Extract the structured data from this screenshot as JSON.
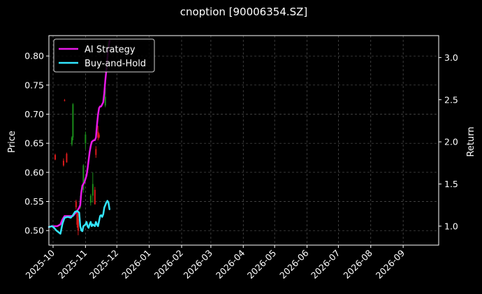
{
  "chart_data": {
    "type": "line",
    "title": "cnoption [90006354.SZ]",
    "ylabel_left": "Price",
    "ylabel_right": "Return",
    "xlim": [
      "2025-09-27",
      "2026-10-05"
    ],
    "ylim_left": [
      0.475,
      0.835
    ],
    "ylim_right": [
      0.775,
      3.26
    ],
    "grid": true,
    "legend_position": "top-left",
    "x_ticks": [
      "2025-10",
      "2025-11",
      "2025-12",
      "2026-01",
      "2026-02",
      "2026-03",
      "2026-04",
      "2026-05",
      "2026-06",
      "2026-07",
      "2026-08",
      "2026-09"
    ],
    "x_tick_dates": [
      "2025-10-01",
      "2025-11-01",
      "2025-12-01",
      "2026-01-01",
      "2026-02-01",
      "2026-03-01",
      "2026-04-01",
      "2026-05-01",
      "2026-06-01",
      "2026-07-01",
      "2026-08-01",
      "2026-09-01"
    ],
    "y_ticks_left": [
      "0.50",
      "0.55",
      "0.60",
      "0.65",
      "0.70",
      "0.75",
      "0.80"
    ],
    "y_ticks_left_values": [
      0.5,
      0.55,
      0.6,
      0.65,
      0.7,
      0.75,
      0.8
    ],
    "y_ticks_right": [
      "1.0",
      "1.5",
      "2.0",
      "2.5",
      "3.0"
    ],
    "y_ticks_right_values": [
      1.0,
      1.5,
      2.0,
      2.5,
      3.0
    ],
    "series": [
      {
        "name": "AI Strategy",
        "axis": "right",
        "color": "#e619e6",
        "x": [
          "2025-09-27",
          "2025-09-30",
          "2025-10-05",
          "2025-10-08",
          "2025-10-10",
          "2025-10-12",
          "2025-10-15",
          "2025-10-20",
          "2025-10-22",
          "2025-10-24",
          "2025-10-26",
          "2025-10-27",
          "2025-10-28",
          "2025-10-29",
          "2025-10-30",
          "2025-10-31",
          "2025-11-02",
          "2025-11-03",
          "2025-11-04",
          "2025-11-05",
          "2025-11-06",
          "2025-11-07",
          "2025-11-09",
          "2025-11-10",
          "2025-11-11",
          "2025-11-12",
          "2025-11-13",
          "2025-11-14",
          "2025-11-15",
          "2025-11-16",
          "2025-11-18",
          "2025-11-19",
          "2025-11-20",
          "2025-11-21",
          "2025-11-22",
          "2025-11-23",
          "2025-11-24"
        ],
        "values": [
          0.99,
          1.0,
          1.0,
          1.02,
          1.08,
          1.12,
          1.12,
          1.12,
          1.15,
          1.18,
          1.22,
          1.25,
          1.4,
          1.48,
          1.5,
          1.52,
          1.6,
          1.68,
          1.78,
          1.88,
          1.95,
          2.0,
          2.02,
          2.02,
          2.05,
          2.2,
          2.32,
          2.4,
          2.42,
          2.42,
          2.47,
          2.58,
          2.73,
          2.85,
          3.0,
          3.12,
          3.2
        ]
      },
      {
        "name": "Buy-and-Hold",
        "axis": "right",
        "color": "#33e6ff",
        "x": [
          "2025-09-27",
          "2025-09-30",
          "2025-10-02",
          "2025-10-04",
          "2025-10-06",
          "2025-10-08",
          "2025-10-10",
          "2025-10-12",
          "2025-10-15",
          "2025-10-18",
          "2025-10-20",
          "2025-10-22",
          "2025-10-24",
          "2025-10-26",
          "2025-10-27",
          "2025-10-28",
          "2025-10-29",
          "2025-10-30",
          "2025-11-01",
          "2025-11-02",
          "2025-11-03",
          "2025-11-04",
          "2025-11-05",
          "2025-11-06",
          "2025-11-07",
          "2025-11-08",
          "2025-11-09",
          "2025-11-10",
          "2025-11-11",
          "2025-11-12",
          "2025-11-13",
          "2025-11-14",
          "2025-11-15",
          "2025-11-16",
          "2025-11-17",
          "2025-11-18",
          "2025-11-19",
          "2025-11-20",
          "2025-11-21",
          "2025-11-22",
          "2025-11-23",
          "2025-11-24"
        ],
        "values": [
          0.99,
          1.0,
          0.98,
          0.95,
          0.93,
          0.91,
          1.03,
          1.1,
          1.11,
          1.1,
          1.13,
          1.17,
          1.18,
          1.16,
          1.0,
          0.95,
          0.94,
          1.0,
          1.02,
          1.05,
          1.0,
          0.98,
          1.02,
          1.05,
          1.0,
          1.02,
          1.01,
          1.0,
          1.05,
          1.02,
          1.0,
          1.06,
          1.12,
          1.13,
          1.11,
          1.14,
          1.22,
          1.25,
          1.28,
          1.3,
          1.28,
          1.2
        ]
      }
    ],
    "candles": [
      {
        "date": "2025-10-03",
        "open": 0.622,
        "close": 0.63,
        "low": 0.621,
        "high": 0.632,
        "color": "#d91a1a"
      },
      {
        "date": "2025-10-11",
        "open": 0.612,
        "close": 0.62,
        "low": 0.61,
        "high": 0.624,
        "color": "#d91a1a"
      },
      {
        "date": "2025-10-12",
        "open": 0.724,
        "close": 0.724,
        "low": 0.722,
        "high": 0.726,
        "color": "#d91a1a"
      },
      {
        "date": "2025-10-14",
        "open": 0.617,
        "close": 0.632,
        "low": 0.617,
        "high": 0.634,
        "color": "#d91a1a"
      },
      {
        "date": "2025-10-19",
        "open": 0.66,
        "close": 0.648,
        "low": 0.645,
        "high": 0.662,
        "color": "#1a8c1a"
      },
      {
        "date": "2025-10-20",
        "open": 0.717,
        "close": 0.66,
        "low": 0.655,
        "high": 0.719,
        "color": "#1a8c1a"
      },
      {
        "date": "2025-10-23",
        "open": 0.54,
        "close": 0.55,
        "low": 0.536,
        "high": 0.553,
        "color": "#d91a1a"
      },
      {
        "date": "2025-10-24",
        "open": 0.51,
        "close": 0.532,
        "low": 0.505,
        "high": 0.535,
        "color": "#d91a1a"
      },
      {
        "date": "2025-10-25",
        "open": 0.52,
        "close": 0.5,
        "low": 0.492,
        "high": 0.53,
        "color": "#d91a1a"
      },
      {
        "date": "2025-10-27",
        "open": 0.548,
        "close": 0.54,
        "low": 0.537,
        "high": 0.56,
        "color": "#1a8c1a"
      },
      {
        "date": "2025-10-30",
        "open": 0.612,
        "close": 0.57,
        "low": 0.565,
        "high": 0.614,
        "color": "#1a8c1a"
      },
      {
        "date": "2025-11-01",
        "open": 0.665,
        "close": 0.65,
        "low": 0.64,
        "high": 0.67,
        "color": "#1a8c1a"
      },
      {
        "date": "2025-11-06",
        "open": 0.56,
        "close": 0.548,
        "low": 0.543,
        "high": 0.563,
        "color": "#1a8c1a"
      },
      {
        "date": "2025-11-08",
        "open": 0.58,
        "close": 0.56,
        "low": 0.548,
        "high": 0.6,
        "color": "#1a8c1a"
      },
      {
        "date": "2025-11-10",
        "open": 0.545,
        "close": 0.57,
        "low": 0.545,
        "high": 0.575,
        "color": "#d91a1a"
      },
      {
        "date": "2025-11-11",
        "open": 0.63,
        "close": 0.64,
        "low": 0.625,
        "high": 0.645,
        "color": "#d91a1a"
      },
      {
        "date": "2025-11-13",
        "open": 0.66,
        "close": 0.67,
        "low": 0.655,
        "high": 0.68,
        "color": "#d91a1a"
      },
      {
        "date": "2025-11-14",
        "open": 0.665,
        "close": 0.66,
        "low": 0.658,
        "high": 0.668,
        "color": "#d91a1a"
      },
      {
        "date": "2025-11-20",
        "open": 0.73,
        "close": 0.715,
        "low": 0.712,
        "high": 0.745,
        "color": "#1a8c1a"
      },
      {
        "date": "2025-11-22",
        "open": 0.82,
        "close": 0.8,
        "low": 0.795,
        "high": 0.825,
        "color": "#1a8c1a"
      }
    ]
  }
}
